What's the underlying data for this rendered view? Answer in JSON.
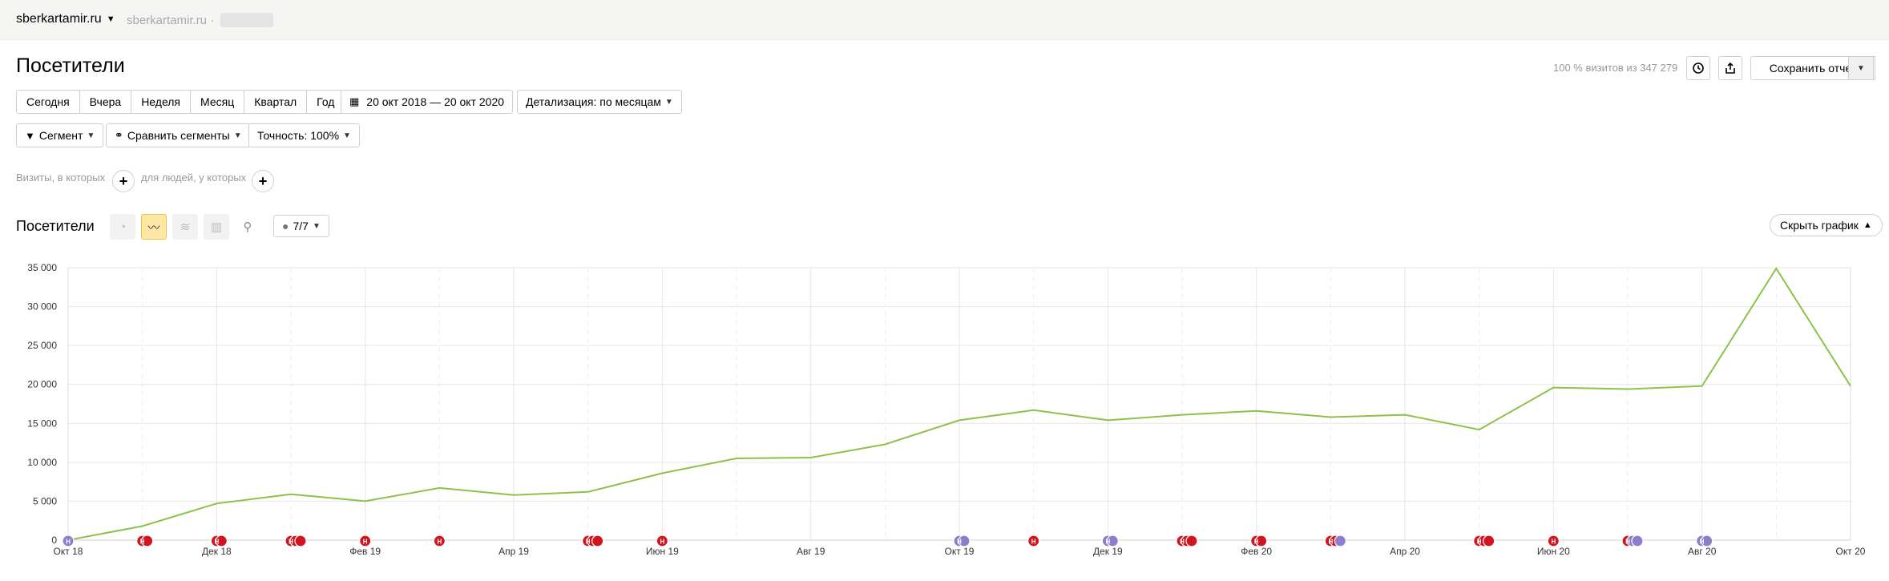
{
  "header": {
    "site": "sberkartamir.ru",
    "site_secondary": "sberkartamir.ru ·"
  },
  "page": {
    "title": "Посетители",
    "visits_info": "100 % визитов из 347 279",
    "save_report": "Сохранить отчет"
  },
  "periods": [
    "Сегодня",
    "Вчера",
    "Неделя",
    "Месяц",
    "Квартал",
    "Год"
  ],
  "date_range": "20 окт 2018 — 20 окт 2020",
  "detail": "Детализация: по месяцам",
  "segment": "Сегмент",
  "compare": "Сравнить сегменты",
  "accuracy": "Точность: 100%",
  "filters": {
    "visits": "Визиты, в которых",
    "people": "для людей, у которых"
  },
  "chart_section": {
    "title": "Посетители",
    "annotations": "7/7",
    "hide_chart": "Скрыть график"
  },
  "colors": {
    "line": "#8bc34a",
    "marker_red": "#d2141e",
    "marker_purple": "#8e7ccc"
  },
  "chart_data": {
    "type": "line",
    "yticks": [
      "0",
      "5 000",
      "10 000",
      "15 000",
      "20 000",
      "25 000",
      "30 000",
      "35 000"
    ],
    "ylim": [
      0,
      35000
    ],
    "x_labels": [
      {
        "label": "Окт 18",
        "idx": 0
      },
      {
        "label": "Дек 18",
        "idx": 2
      },
      {
        "label": "Фев 19",
        "idx": 4
      },
      {
        "label": "Апр 19",
        "idx": 6
      },
      {
        "label": "Июн 19",
        "idx": 8
      },
      {
        "label": "Авг 19",
        "idx": 10
      },
      {
        "label": "Окт 19",
        "idx": 12
      },
      {
        "label": "Дек 19",
        "idx": 14
      },
      {
        "label": "Фев 20",
        "idx": 16
      },
      {
        "label": "Апр 20",
        "idx": 18
      },
      {
        "label": "Июн 20",
        "idx": 20
      },
      {
        "label": "Авг 20",
        "idx": 22
      },
      {
        "label": "Окт 20",
        "idx": 24
      }
    ],
    "values": [
      0,
      1800,
      4700,
      5900,
      5000,
      6700,
      5800,
      6200,
      8600,
      10500,
      10600,
      12300,
      15400,
      16700,
      15400,
      16100,
      16600,
      15800,
      16100,
      14200,
      19600,
      19400,
      19800,
      34900,
      19800
    ],
    "markers": [
      {
        "idx": 0,
        "colors": [
          "purple"
        ]
      },
      {
        "idx": 1,
        "colors": [
          "red",
          "red"
        ]
      },
      {
        "idx": 2,
        "colors": [
          "red",
          "red"
        ]
      },
      {
        "idx": 3,
        "colors": [
          "red",
          "red",
          "red"
        ]
      },
      {
        "idx": 4,
        "colors": [
          "red"
        ]
      },
      {
        "idx": 5,
        "colors": [
          "red"
        ]
      },
      {
        "idx": 7,
        "colors": [
          "red",
          "red",
          "red"
        ]
      },
      {
        "idx": 8,
        "colors": [
          "red"
        ]
      },
      {
        "idx": 12,
        "colors": [
          "purple",
          "purple"
        ]
      },
      {
        "idx": 13,
        "colors": [
          "red"
        ]
      },
      {
        "idx": 14,
        "colors": [
          "purple",
          "purple"
        ]
      },
      {
        "idx": 15,
        "colors": [
          "red",
          "red",
          "red"
        ]
      },
      {
        "idx": 16,
        "colors": [
          "red",
          "red"
        ]
      },
      {
        "idx": 17,
        "colors": [
          "red",
          "red",
          "purple"
        ]
      },
      {
        "idx": 19,
        "colors": [
          "red",
          "red",
          "red"
        ]
      },
      {
        "idx": 20,
        "colors": [
          "red"
        ]
      },
      {
        "idx": 21,
        "colors": [
          "red",
          "purple",
          "purple"
        ]
      },
      {
        "idx": 22,
        "colors": [
          "purple",
          "purple"
        ]
      }
    ],
    "marker_letter": "Н"
  }
}
